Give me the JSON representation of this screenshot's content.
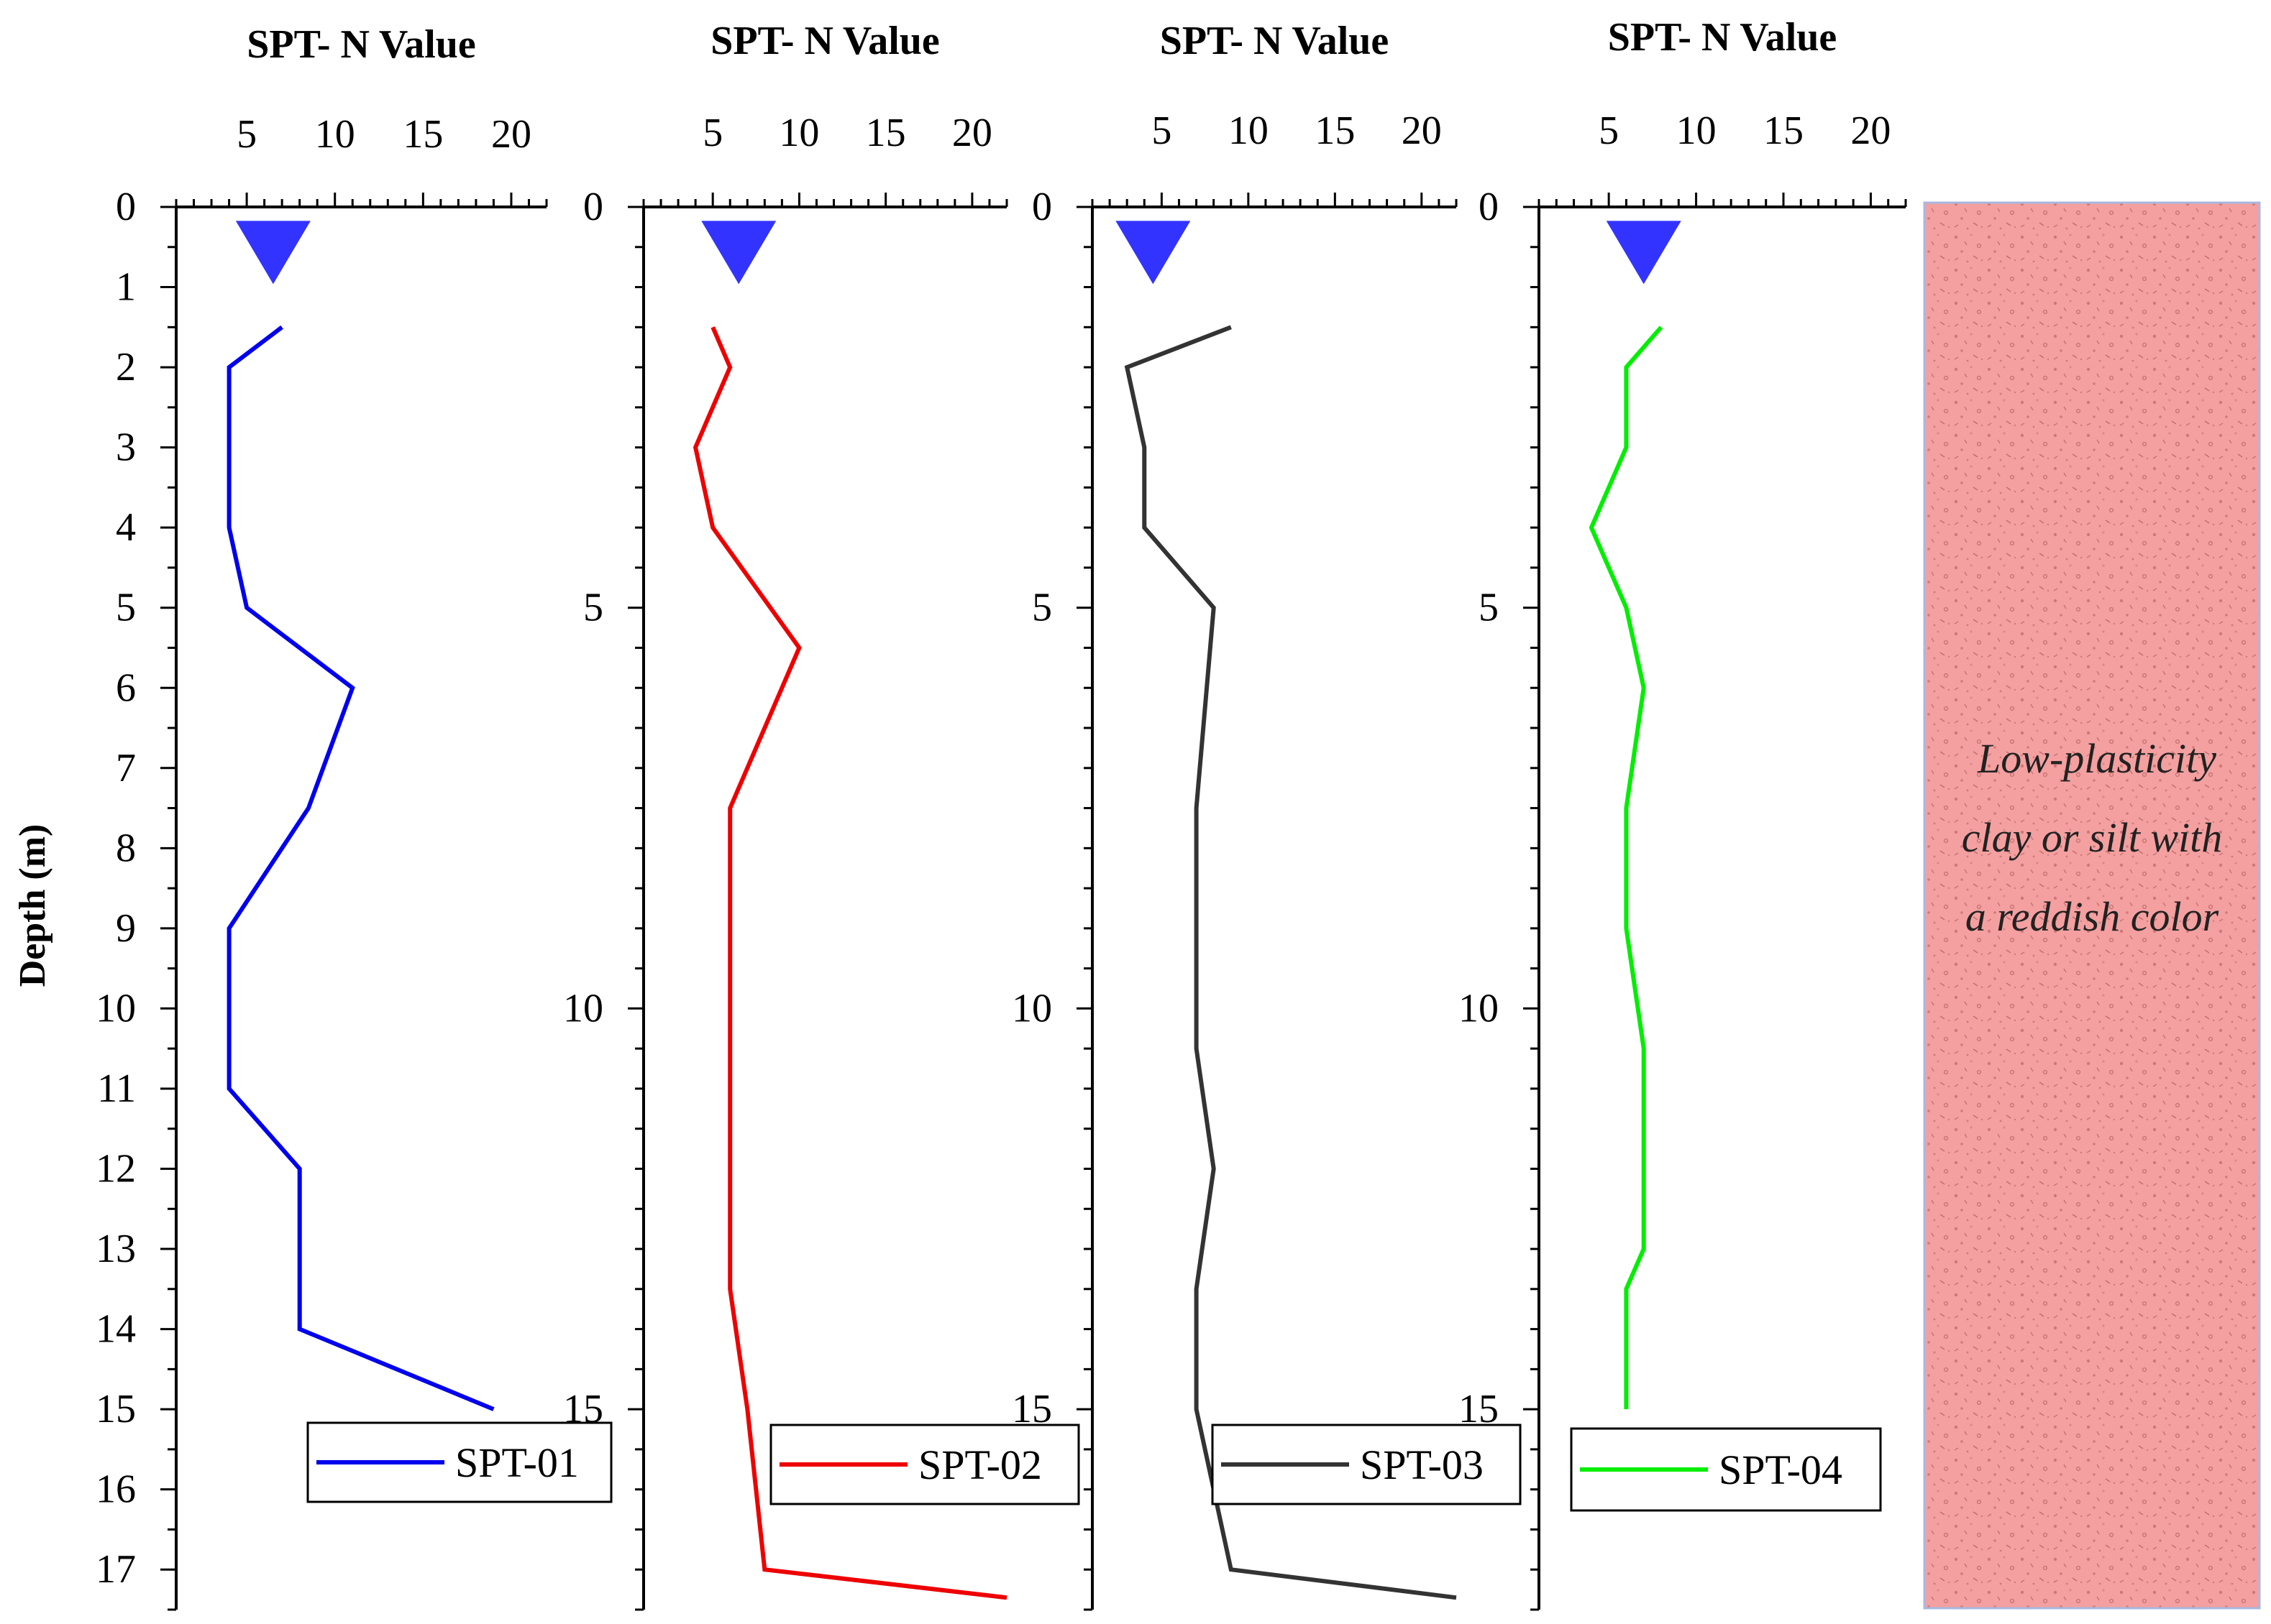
{
  "chart_data": [
    {
      "type": "line",
      "id": "spt-01",
      "title": "SPT- N Value",
      "xlabel": "SPT- N Value",
      "ylabel": "Depth (m)",
      "xlim": [
        1,
        22
      ],
      "ylim": [
        0,
        17.5
      ],
      "xticks": [
        5,
        10,
        15,
        20
      ],
      "xtick_labels": [
        "5",
        "10",
        "15",
        "20"
      ],
      "yticks": [
        0,
        1,
        2,
        3,
        4,
        5,
        6,
        7,
        8,
        9,
        10,
        11,
        12,
        13,
        14,
        15,
        16,
        17
      ],
      "ytick_labels": [
        "0",
        "1",
        "2",
        "3",
        "4",
        "5",
        "6",
        "7",
        "8",
        "9",
        "10",
        "11",
        "12",
        "13",
        "14",
        "15",
        "16",
        "17"
      ],
      "series": [
        {
          "name": "SPT-01",
          "color": "#0000ee",
          "points": [
            [
              7,
              1.5
            ],
            [
              4,
              2
            ],
            [
              4,
              3
            ],
            [
              4,
              4
            ],
            [
              5,
              5
            ],
            [
              11,
              6
            ],
            [
              8.5,
              7.5
            ],
            [
              4,
              9
            ],
            [
              4,
              10
            ],
            [
              4,
              11
            ],
            [
              8,
              12
            ],
            [
              8,
              13
            ],
            [
              8,
              14
            ],
            [
              19,
              15
            ]
          ]
        }
      ],
      "groundwater_marker": {
        "x": 6.5,
        "depth": 0.55,
        "color": "#3333ff"
      },
      "legend": {
        "label": "SPT-01",
        "position": "bottom-right"
      }
    },
    {
      "type": "line",
      "id": "spt-02",
      "title": "SPT- N Value",
      "xlabel": "SPT- N Value",
      "xlim": [
        1,
        22
      ],
      "ylim": [
        0,
        17.5
      ],
      "xticks": [
        5,
        10,
        15,
        20
      ],
      "xtick_labels": [
        "5",
        "10",
        "15",
        "20"
      ],
      "yticks": [
        0,
        5,
        10,
        15
      ],
      "ytick_labels": [
        "0",
        "5",
        "10",
        "15"
      ],
      "series": [
        {
          "name": "SPT-02",
          "color": "#ee0000",
          "points": [
            [
              5,
              1.5
            ],
            [
              6,
              2
            ],
            [
              4,
              3
            ],
            [
              5,
              4
            ],
            [
              10,
              5.5
            ],
            [
              6,
              7.5
            ],
            [
              6,
              10
            ],
            [
              6,
              13.5
            ],
            [
              7,
              15
            ],
            [
              8,
              17
            ],
            [
              22,
              17.35
            ]
          ]
        }
      ],
      "groundwater_marker": {
        "x": 6.5,
        "depth": 0.55,
        "color": "#3333ff"
      },
      "legend": {
        "label": "SPT-02",
        "position": "bottom-right"
      }
    },
    {
      "type": "line",
      "id": "spt-03",
      "title": "SPT- N Value",
      "xlabel": "SPT- N Value",
      "xlim": [
        1,
        22
      ],
      "ylim": [
        0,
        17.5
      ],
      "xticks": [
        5,
        10,
        15,
        20
      ],
      "xtick_labels": [
        "5",
        "10",
        "15",
        "20"
      ],
      "yticks": [
        0,
        5,
        10,
        15
      ],
      "ytick_labels": [
        "0",
        "5",
        "10",
        "15"
      ],
      "series": [
        {
          "name": "SPT-03",
          "color": "#333333",
          "points": [
            [
              9,
              1.5
            ],
            [
              3,
              2
            ],
            [
              4,
              3
            ],
            [
              4,
              4
            ],
            [
              8,
              5
            ],
            [
              7,
              7.5
            ],
            [
              7,
              10.5
            ],
            [
              8,
              12
            ],
            [
              7,
              13.5
            ],
            [
              7,
              15
            ],
            [
              9,
              17
            ],
            [
              22,
              17.35
            ]
          ]
        }
      ],
      "groundwater_marker": {
        "x": 4.5,
        "depth": 0.55,
        "color": "#3333ff"
      },
      "legend": {
        "label": "SPT-03",
        "position": "bottom-right"
      }
    },
    {
      "type": "line",
      "id": "spt-04",
      "title": "SPT- N Value",
      "xlabel": "SPT- N Value",
      "xlim": [
        1,
        22
      ],
      "ylim": [
        0,
        17.5
      ],
      "xticks": [
        5,
        10,
        15,
        20
      ],
      "xtick_labels": [
        "5",
        "10",
        "15",
        "20"
      ],
      "yticks": [
        0,
        5,
        10,
        15
      ],
      "ytick_labels": [
        "0",
        "5",
        "10",
        "15"
      ],
      "series": [
        {
          "name": "SPT-04",
          "color": "#00ee00",
          "points": [
            [
              8,
              1.5
            ],
            [
              6,
              2
            ],
            [
              6,
              3
            ],
            [
              4,
              4
            ],
            [
              6,
              5
            ],
            [
              7,
              6
            ],
            [
              6,
              7.5
            ],
            [
              6,
              9
            ],
            [
              7,
              10.5
            ],
            [
              7,
              13
            ],
            [
              6,
              13.5
            ],
            [
              6,
              15
            ]
          ]
        }
      ],
      "groundwater_marker": {
        "x": 7,
        "depth": 0.55,
        "color": "#3333ff"
      },
      "legend": {
        "label": "SPT-04",
        "position": "bottom-right"
      }
    }
  ],
  "soil_column": {
    "description_lines": [
      "Low-plasticity",
      "clay or silt with",
      "a reddish color"
    ],
    "fill_color": "#f4a0a0",
    "speckle_color": "#d98080",
    "border_color": "#a8b8e0"
  },
  "ylabel": "Depth (m)"
}
